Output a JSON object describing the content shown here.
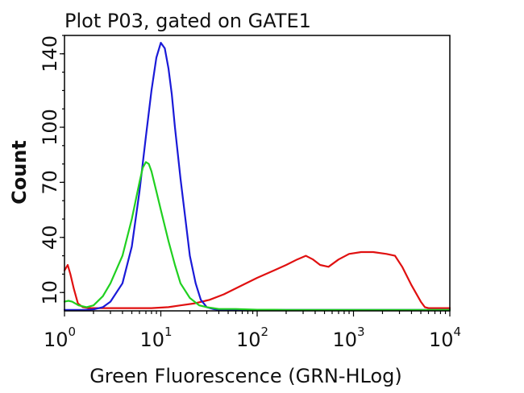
{
  "chart_data": {
    "type": "line",
    "title": "Plot P03, gated on GATE1",
    "xlabel": "Green Fluorescence (GRN-HLog)",
    "ylabel": "Count",
    "xscale": "log",
    "xlim": [
      1,
      10000
    ],
    "ylim": [
      0,
      150
    ],
    "xticks": [
      {
        "base": "10",
        "exp": "0",
        "value": 1
      },
      {
        "base": "10",
        "exp": "1",
        "value": 10
      },
      {
        "base": "10",
        "exp": "2",
        "value": 100
      },
      {
        "base": "10",
        "exp": "3",
        "value": 1000
      },
      {
        "base": "10",
        "exp": "4",
        "value": 10000
      }
    ],
    "yticks": [
      10,
      40,
      70,
      100,
      140
    ],
    "grid": false,
    "series": [
      {
        "color": "#e01010",
        "x": [
          1.0,
          1.08,
          1.15,
          1.25,
          1.38,
          1.55,
          1.8,
          2.2,
          3,
          5,
          8,
          12,
          16,
          22,
          32,
          45,
          70,
          100,
          150,
          200,
          260,
          320,
          380,
          450,
          550,
          700,
          900,
          1200,
          1600,
          2200,
          2700,
          3200,
          4000,
          5000,
          5500,
          6000,
          7000,
          10000
        ],
        "y": [
          22,
          25,
          20,
          12,
          4,
          2,
          1.5,
          1.5,
          1.5,
          1.5,
          1.5,
          2,
          3,
          4,
          6,
          9,
          14,
          18,
          22,
          25,
          28,
          30,
          28,
          25,
          24,
          28,
          31,
          32,
          32,
          31,
          30,
          24,
          14,
          5,
          2,
          1.5,
          1.5,
          1.5
        ]
      },
      {
        "color": "#1a1ad8",
        "x": [
          1.0,
          1.3,
          1.6,
          2.0,
          2.5,
          3,
          4,
          5,
          6,
          7,
          8,
          9,
          10,
          11,
          12,
          13,
          14,
          16,
          18,
          20,
          23,
          26,
          30,
          35,
          40,
          60,
          100,
          10000
        ],
        "y": [
          0.5,
          0.5,
          0.5,
          0.8,
          2,
          5,
          15,
          35,
          65,
          95,
          120,
          138,
          146,
          143,
          132,
          118,
          100,
          72,
          50,
          30,
          15,
          6,
          2,
          1,
          0.5,
          0.5,
          0.5,
          0.5
        ]
      },
      {
        "color": "#20d020",
        "x": [
          1.0,
          1.1,
          1.2,
          1.4,
          1.7,
          2,
          2.5,
          3,
          4,
          5,
          6,
          6.5,
          7,
          7.5,
          8,
          9,
          10,
          12,
          14,
          16,
          20,
          25,
          30,
          40,
          60,
          100,
          150,
          200,
          10000
        ],
        "y": [
          5,
          5.5,
          5,
          3,
          2,
          3,
          8,
          15,
          30,
          50,
          70,
          78,
          81,
          80,
          76,
          65,
          55,
          38,
          25,
          15,
          7,
          3,
          2,
          1,
          1,
          0.6,
          0.6,
          0.5,
          0.5
        ]
      }
    ]
  }
}
